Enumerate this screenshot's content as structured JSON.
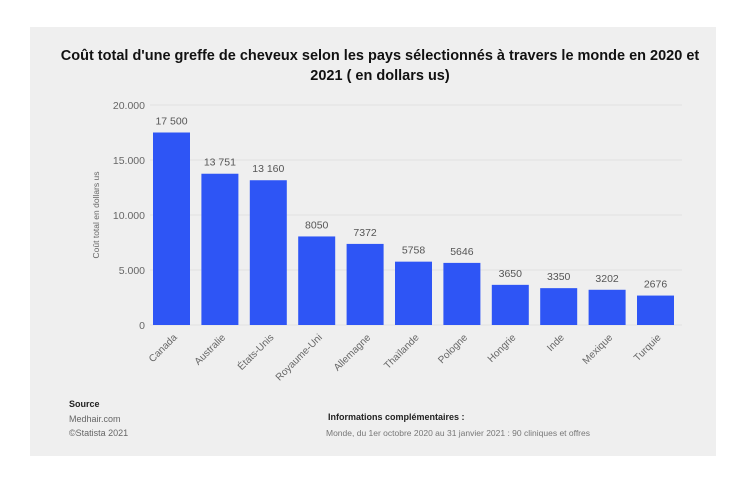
{
  "chart_data": {
    "type": "bar",
    "title": "Coût total d'une greffe de cheveux selon les pays sélectionnés à travers le monde en 2020 et 2021 ( en dollars us)",
    "ylabel": "Coût total en dollars us",
    "xlabel": "",
    "categories": [
      "Canada",
      "Australie",
      "États-Unis",
      "Royaume-Uni",
      "Allemagne",
      "Thaïlande",
      "Pologne",
      "Hongrie",
      "Inde",
      "Mexique",
      "Turquie"
    ],
    "values": [
      17500,
      13751,
      13160,
      8050,
      7372,
      5758,
      5646,
      3650,
      3350,
      3202,
      2676
    ],
    "data_labels": [
      "17 500",
      "13 751",
      "13 160",
      "8050",
      "7372",
      "5758",
      "5646",
      "3650",
      "3350",
      "3202",
      "2676"
    ],
    "ylim": [
      0,
      20000
    ],
    "yticks": [
      0,
      5000,
      10000,
      15000,
      20000
    ],
    "ytick_labels": [
      "0",
      "5.000",
      "10.000",
      "15.000",
      "20.000"
    ],
    "grid": true,
    "bar_color": "#2e55f5"
  },
  "footer": {
    "source_heading": "Source",
    "source_lines": [
      "Medhair.com",
      "©Statista 2021"
    ],
    "info_heading": "Informations complémentaires :",
    "info_text": "Monde, du 1er octobre 2020 au 31 janvier 2021 : 90 cliniques et offres"
  }
}
